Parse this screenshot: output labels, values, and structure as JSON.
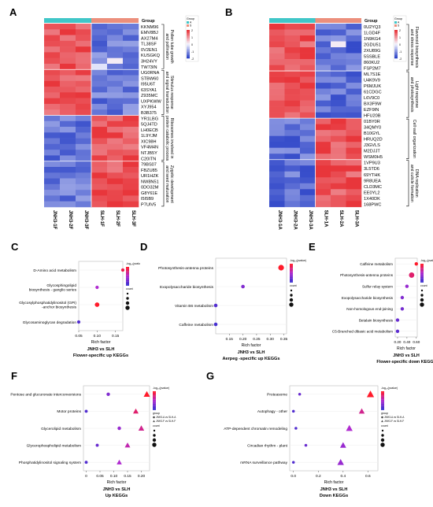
{
  "panel_labels": [
    "A",
    "B",
    "C",
    "D",
    "E",
    "F",
    "G"
  ],
  "colors": {
    "hm_red": "#e8363b",
    "hm_blue": "#2f46c8",
    "group_teal": "#40c6c8",
    "group_salmon": "#ec8f7c"
  },
  "heatmapA": {
    "group_label": "Group",
    "legend_group": [
      "Group",
      "A",
      "S"
    ],
    "legend_scale": [
      "2",
      "1",
      "0",
      "-1",
      "-2"
    ],
    "rows": [
      "KKNM96",
      "EMV8BJ",
      "AX27M4",
      "TL38SF",
      "0V2EN1",
      "KUSGKQ",
      "3H24VY",
      "TW73IN",
      "UG0RNA",
      "STBW60",
      "I95U6T",
      "63SYA1",
      "Z935MC",
      "UXPKWW",
      "XYJ954",
      "B3B375",
      "YR1LBG",
      "5QJ4TD",
      "LH0ECB",
      "1L9YJM",
      "XIC98H",
      "VF4M4N",
      "NTJB5Y",
      "C20ITN",
      "79BS07",
      "FBZU85",
      "UR1HZK",
      "NW8N51",
      "0DO32M",
      "G8Y61E",
      "I5I5B9",
      "P7UIV5"
    ],
    "cols": [
      "JNH3-1F",
      "JNH3-2F",
      "JNH3-3F",
      "SLH-1F",
      "SLH-2F",
      "SLH-3F"
    ],
    "annotations": [
      "Pollen tube growth and pollination",
      "Stimulus response and signal transduction",
      "Ribosomes involved in protein catabolic process",
      "Zygotic development and seed maturation"
    ]
  },
  "heatmapB": {
    "group_label": "Group",
    "legend_group": [
      "Group",
      "A",
      "S"
    ],
    "legend_scale": [
      "2",
      "1",
      "0",
      "-1",
      "-2"
    ],
    "rows": [
      "0U2YQ3",
      "1LGD4F",
      "1N9KG4",
      "2GDU51",
      "2XU89G",
      "5SSBLE",
      "860KU2",
      "FSP2M7",
      "ML7S1E",
      "U4K9V9",
      "P6MJUK",
      "61CDGC",
      "L6V9C0",
      "BX3F9W",
      "EZF9IN",
      "HFU20B",
      "01BY0R",
      "34QMY0",
      "B10GYL",
      "HRUQ2D",
      "J3GVLS",
      "M2DJJT",
      "WSM0H5",
      "1VP9U3",
      "3L5TD6",
      "69YTHK",
      "9R8UEA",
      "CLD3MC",
      "EE0YL2",
      "1X40DK",
      "168PWC"
    ],
    "cols": [
      "JNH3-1A",
      "JNH3-2A",
      "JNH3-3A",
      "SLH-1A",
      "SLH-2A",
      "SLH-3A"
    ],
    "annotations": [
      "Flavonoid biosynthesis and stress response",
      "Light response and photosynthesis",
      "Cell wall organization",
      "DNA replication and cuticle formation"
    ]
  },
  "panelC": {
    "chart_data": {
      "type": "scatter",
      "terms": [
        "D-Amino acid metabolism",
        "Glycosphingolipid biosynthesis - ganglio series",
        "Glycosylphosphatidylinositol (GPI)-anchor biosynthesis",
        "Glycosaminoglycan degradation"
      ],
      "rich_factor": [
        0.17,
        0.1,
        0.1,
        0.05
      ],
      "count": [
        1,
        1,
        3,
        1
      ],
      "neg_log10_p": [
        0.9,
        0.5,
        1.0,
        0.1
      ],
      "x_ticks": [
        "0.05",
        "0.10",
        "0.15"
      ],
      "xlim": [
        0.05,
        0.17
      ],
      "xlabel": "Rich factor",
      "subtitle": "JNH3 vs SLH",
      "title": "Flower-specific up KEGGs",
      "legend_color_title": "-log₁₀(pvalue)",
      "legend_size_title": "count"
    }
  },
  "panelD": {
    "chart_data": {
      "type": "scatter",
      "terms": [
        "Photosynthesis-antenna proteins",
        "Exopolysaccharide biosynthesis",
        "Vitamin B6 metabolism",
        "Caffeine metabolism"
      ],
      "rich_factor": [
        0.34,
        0.2,
        0.1,
        0.1
      ],
      "count": [
        4,
        1,
        1,
        1
      ],
      "neg_log10_p": [
        2.0,
        0.6,
        0.2,
        0.1
      ],
      "x_ticks": [
        "0.15",
        "0.20",
        "0.25",
        "0.30",
        "0.35"
      ],
      "xlim": [
        0.1,
        0.36
      ],
      "xlabel": "Rich factor",
      "subtitle": "JNH3 vs SLH",
      "title": "Aerpeg -specific up KEGGs",
      "legend_color_title": "-log₁₀(pvalue)",
      "legend_size_title": "count"
    }
  },
  "panelE": {
    "chart_data": {
      "type": "scatter",
      "terms": [
        "Caffeine metabolism",
        "Photosynthesis-antenna proteins",
        "Sulfur relay system",
        "Exopolysaccharide biosynthesis",
        "Non-homologous end-joining",
        "Betalain biosynthesis",
        "C5-Branched dibasic acid metabolism"
      ],
      "rich_factor": [
        0.6,
        0.5,
        0.4,
        0.3,
        0.3,
        0.2,
        0.2
      ],
      "count": [
        1,
        4,
        1,
        1,
        1,
        1,
        1
      ],
      "neg_log10_p": [
        2.0,
        1.6,
        0.8,
        0.6,
        0.5,
        0.4,
        0.3
      ],
      "x_ticks": [
        "0.20",
        "0.40",
        "0.60"
      ],
      "xlim": [
        0.15,
        0.62
      ],
      "xlabel": "Rich factor",
      "subtitle": "JNH3 vs SLH",
      "title": "Flower-specific down KEGGs",
      "legend_color_title": "-log₁₀(pvalue)",
      "legend_size_title": "count"
    }
  },
  "panelF": {
    "chart_data": {
      "type": "scatter",
      "terms": [
        "Pentose and glucuronate interconversions",
        "Motor proteins",
        "Glycerolipid metabolism",
        "Glycerophospholipid metabolism",
        "Phosphatidylinositol signaling system"
      ],
      "series": [
        {
          "name": "JNH3-A vs SLH-A",
          "rich_factor": [
            0.08,
            0.0,
            0.12,
            0.04,
            0.0
          ],
          "count": [
            2,
            1,
            2,
            1,
            1
          ],
          "neg_log10_p": [
            0.3,
            0.1,
            0.4,
            0.2,
            0.1
          ]
        },
        {
          "name": "JNH3-F vs SLH-F",
          "rich_factor": [
            0.22,
            0.18,
            0.2,
            0.15,
            0.12
          ],
          "count": [
            8,
            5,
            6,
            5,
            4
          ],
          "neg_log10_p": [
            1.0,
            0.8,
            0.7,
            0.6,
            0.5
          ]
        }
      ],
      "x_ticks": [
        "0",
        "0.05",
        "0.10",
        "0.15",
        "0.20"
      ],
      "xlim": [
        -0.01,
        0.23
      ],
      "xlabel": "Rich factor",
      "subtitle": "JNH3 vs SLH",
      "title": "Up KEGGs",
      "legend_color_title": "-log₁₀(pvalue)",
      "legend_shape_title": "group",
      "legend_size_title": "count"
    }
  },
  "panelG": {
    "chart_data": {
      "type": "scatter",
      "terms": [
        "Proteasome",
        "Autophagy - other",
        "ATP-dependent chromatin remodeling",
        "Circadian rhythm - plant",
        "mRNA surveillance pathway"
      ],
      "series": [
        {
          "name": "JNH3-A vs SLH-A",
          "rich_factor": [
            0.05,
            0.0,
            0.02,
            0.1,
            0.0
          ],
          "count": [
            1,
            1,
            1,
            1,
            1
          ],
          "neg_log10_p": [
            0.2,
            0.1,
            0.1,
            0.2,
            0.1
          ]
        },
        {
          "name": "JNH3-F vs SLH-F",
          "rich_factor": [
            0.62,
            0.55,
            0.45,
            0.4,
            0.38
          ],
          "count": [
            20,
            10,
            15,
            12,
            15
          ],
          "neg_log10_p": [
            1.0,
            0.7,
            0.5,
            0.4,
            0.4
          ]
        }
      ],
      "x_ticks": [
        "0.0",
        "0.2",
        "0.4",
        "0.6"
      ],
      "xlim": [
        -0.03,
        0.68
      ],
      "xlabel": "Rich factor",
      "subtitle": "JNH3 vs SLH",
      "title": "Down KEGGs",
      "legend_color_title": "-log₁₀(pvalue)",
      "legend_shape_title": "group",
      "legend_size_title": "count"
    }
  }
}
